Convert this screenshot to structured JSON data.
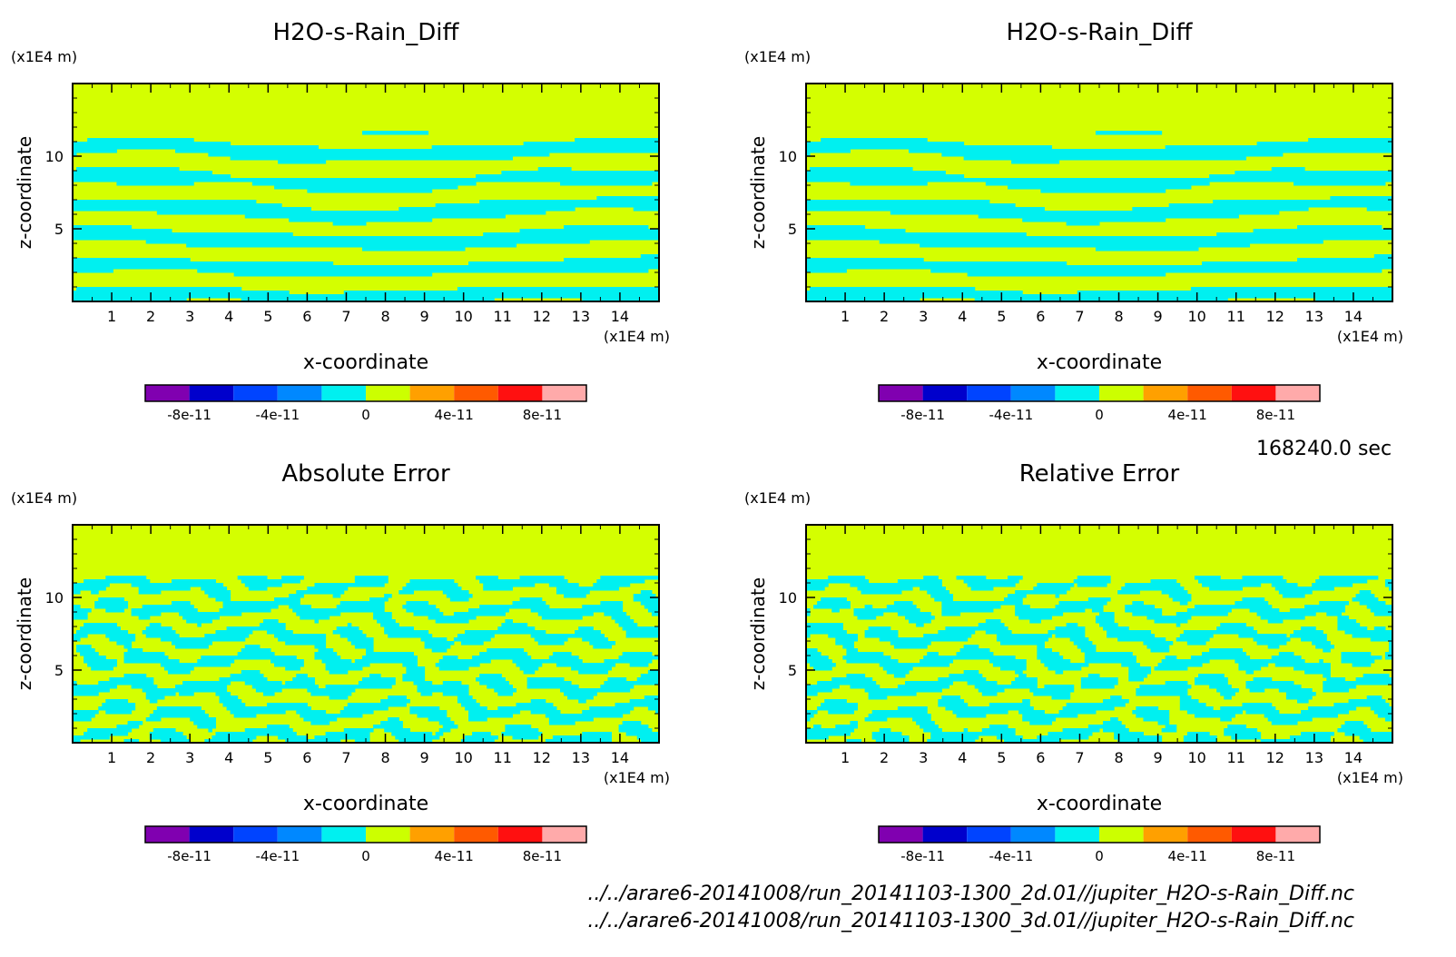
{
  "chart_data": [
    {
      "type": "heatmap",
      "title": "H2O-s-Rain_Diff",
      "xlabel": "x-coordinate",
      "ylabel": "z-coordinate",
      "x_unit": "(x1E4 m)",
      "y_unit": "(x1E4 m)",
      "xlim": [
        0,
        15
      ],
      "ylim": [
        0,
        15
      ],
      "x_ticks": [
        "1",
        "2",
        "3",
        "4",
        "5",
        "6",
        "7",
        "8",
        "9",
        "10",
        "11",
        "12",
        "13",
        "14"
      ],
      "y_ticks": [
        "5",
        "10"
      ],
      "pattern": "smooth",
      "colorbar": [
        "-8e-11",
        "-4e-11",
        "0",
        "4e-11",
        "8e-11"
      ]
    },
    {
      "type": "heatmap",
      "title": "H2O-s-Rain_Diff",
      "xlabel": "x-coordinate",
      "ylabel": "z-coordinate",
      "x_unit": "(x1E4 m)",
      "y_unit": "(x1E4 m)",
      "xlim": [
        0,
        15
      ],
      "ylim": [
        0,
        15
      ],
      "x_ticks": [
        "1",
        "2",
        "3",
        "4",
        "5",
        "6",
        "7",
        "8",
        "9",
        "10",
        "11",
        "12",
        "13",
        "14"
      ],
      "y_ticks": [
        "5",
        "10"
      ],
      "pattern": "smooth",
      "colorbar": [
        "-8e-11",
        "-4e-11",
        "0",
        "4e-11",
        "8e-11"
      ]
    },
    {
      "type": "heatmap",
      "title": "Absolute Error",
      "xlabel": "x-coordinate",
      "ylabel": "z-coordinate",
      "x_unit": "(x1E4 m)",
      "y_unit": "(x1E4 m)",
      "xlim": [
        0,
        15
      ],
      "ylim": [
        0,
        15
      ],
      "x_ticks": [
        "1",
        "2",
        "3",
        "4",
        "5",
        "6",
        "7",
        "8",
        "9",
        "10",
        "11",
        "12",
        "13",
        "14"
      ],
      "y_ticks": [
        "5",
        "10"
      ],
      "pattern": "noisy",
      "colorbar": [
        "-8e-11",
        "-4e-11",
        "0",
        "4e-11",
        "8e-11"
      ]
    },
    {
      "type": "heatmap",
      "title": "Relative Error",
      "xlabel": "x-coordinate",
      "ylabel": "z-coordinate",
      "x_unit": "(x1E4 m)",
      "y_unit": "(x1E4 m)",
      "xlim": [
        0,
        15
      ],
      "ylim": [
        0,
        15
      ],
      "x_ticks": [
        "1",
        "2",
        "3",
        "4",
        "5",
        "6",
        "7",
        "8",
        "9",
        "10",
        "11",
        "12",
        "13",
        "14"
      ],
      "y_ticks": [
        "5",
        "10"
      ],
      "pattern": "noisy",
      "colorbar": [
        "-8e-11",
        "-4e-11",
        "0",
        "4e-11",
        "8e-11"
      ]
    }
  ],
  "colors": {
    "field_a": "#d4ff00",
    "field_b": "#00f0f0",
    "colorbar_bins": [
      "#8000b0",
      "#0000cc",
      "#0044ff",
      "#0088ff",
      "#00f0f0",
      "#ccff00",
      "#ffa000",
      "#ff5a00",
      "#ff1010",
      "#ffaaaa"
    ]
  },
  "timestamp": "168240.0 sec",
  "footer": {
    "line1": "../../arare6-20141008/run_20141103-1300_2d.01//jupiter_H2O-s-Rain_Diff.nc",
    "line2": "../../arare6-20141008/run_20141103-1300_3d.01//jupiter_H2O-s-Rain_Diff.nc"
  }
}
